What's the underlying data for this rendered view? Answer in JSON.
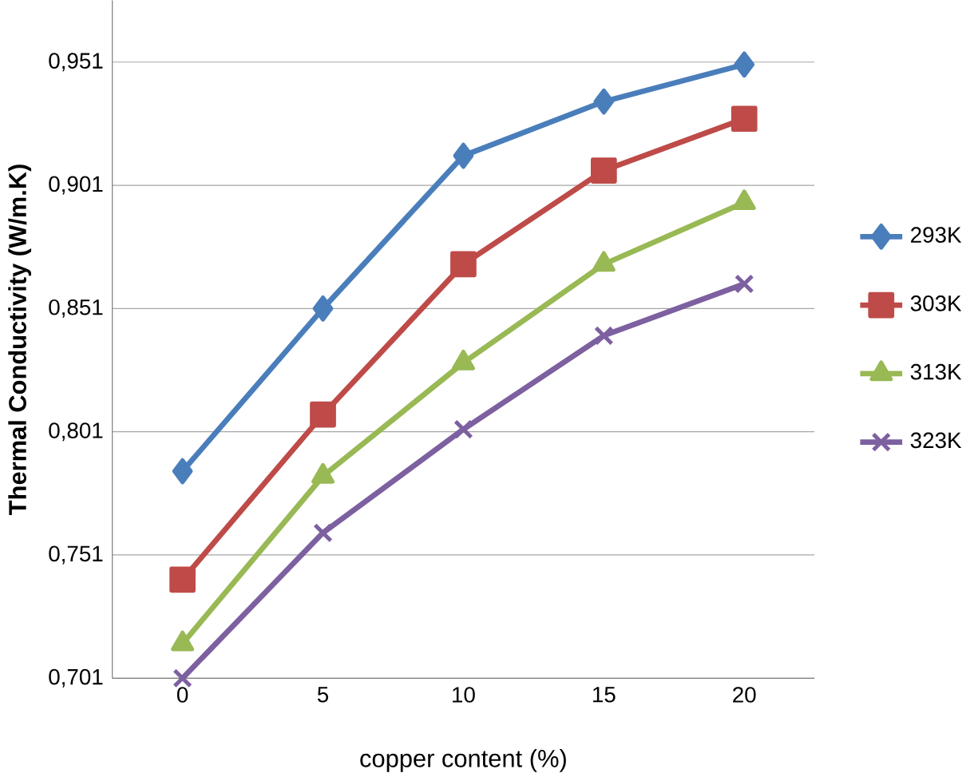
{
  "chart_data": {
    "type": "line",
    "xlabel": "copper content (%)",
    "ylabel": "Thermal Conductivity  (W/m.K)",
    "categories": [
      "0",
      "5",
      "10",
      "15",
      "20"
    ],
    "series": [
      {
        "name": "293K",
        "color": "#4a7ebb",
        "marker": "diamond",
        "values": [
          0.785,
          0.851,
          0.913,
          0.935,
          0.95
        ]
      },
      {
        "name": "303K",
        "color": "#be4b48",
        "marker": "square",
        "values": [
          0.741,
          0.808,
          0.869,
          0.907,
          0.928
        ]
      },
      {
        "name": "313K",
        "color": "#98b954",
        "marker": "triangle",
        "values": [
          0.715,
          0.783,
          0.829,
          0.869,
          0.894
        ]
      },
      {
        "name": "323K",
        "color": "#7d60a0",
        "marker": "cross",
        "values": [
          0.701,
          0.76,
          0.802,
          0.84,
          0.861
        ]
      }
    ],
    "ylim": [
      0.701,
      0.976
    ],
    "yticks": [
      {
        "value": 0.701,
        "label": "0,701"
      },
      {
        "value": 0.751,
        "label": "0,751"
      },
      {
        "value": 0.801,
        "label": "0,801"
      },
      {
        "value": 0.851,
        "label": "0,851"
      },
      {
        "value": 0.901,
        "label": "0,901"
      },
      {
        "value": 0.951,
        "label": "0,951"
      }
    ],
    "grid": "y",
    "legend": "right",
    "line_style": "solid"
  }
}
